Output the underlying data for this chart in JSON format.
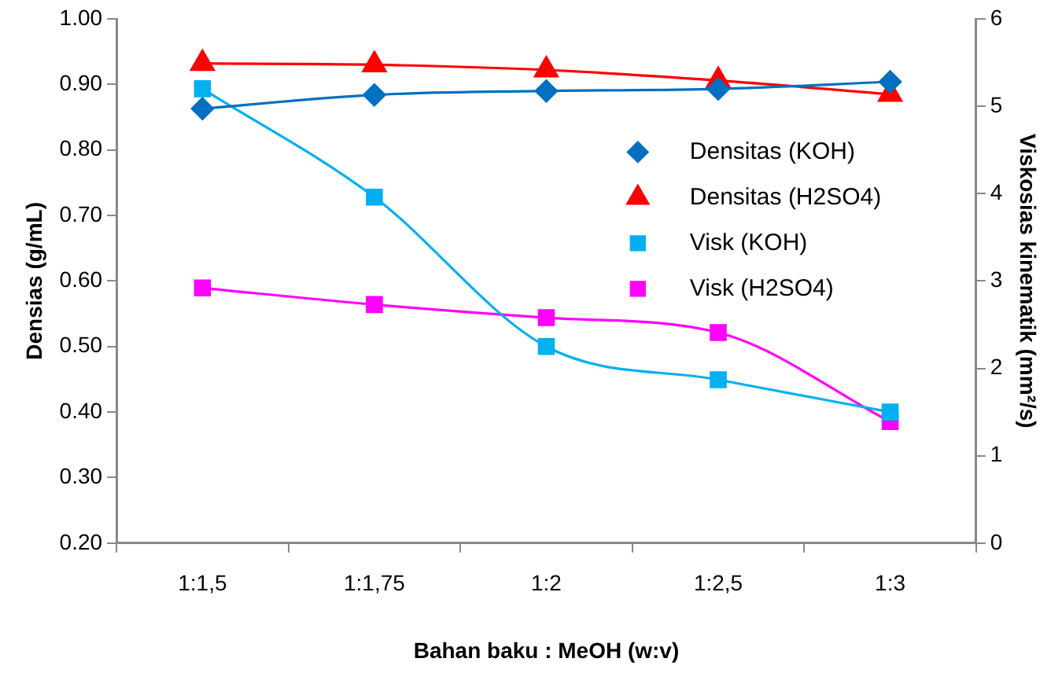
{
  "chart_data": {
    "type": "line",
    "xlabel": "Bahan baku : MeOH (w:v)",
    "ylabel": "Densias (g/mL)",
    "y2label": "Viskosias kinematik (mm²/s)",
    "categories": [
      "1:1,5",
      "1:1,75",
      "1:2",
      "1:2,5",
      "1:3"
    ],
    "ylim": [
      0.2,
      1.0
    ],
    "yticks": [
      {
        "value": 0.2,
        "label": "0.20"
      },
      {
        "value": 0.3,
        "label": "0.30"
      },
      {
        "value": 0.4,
        "label": "0.40"
      },
      {
        "value": 0.5,
        "label": "0.50"
      },
      {
        "value": 0.6,
        "label": "0.60"
      },
      {
        "value": 0.7,
        "label": "0.70"
      },
      {
        "value": 0.8,
        "label": "0.80"
      },
      {
        "value": 0.9,
        "label": "0.90"
      },
      {
        "value": 1.0,
        "label": "1.00"
      }
    ],
    "y2lim": [
      0,
      6
    ],
    "y2ticks": [
      0,
      1,
      2,
      3,
      4,
      5,
      6
    ],
    "grid": false,
    "legend": "right",
    "line_style": "solid",
    "series": [
      {
        "name": "Densitas (KOH)",
        "color": "#0070c0",
        "marker": "diamond",
        "values": [
          0.863,
          0.884,
          0.89,
          0.893,
          0.904
        ]
      },
      {
        "name": "Densitas (H2SO4)",
        "color": "#ff0000",
        "marker": "triangle",
        "values": [
          0.932,
          0.93,
          0.922,
          0.906,
          0.885
        ]
      },
      {
        "name": "Visk (KOH)",
        "color": "#00b0f0",
        "marker": "square",
        "axis": "y2",
        "values": [
          5.2,
          3.96,
          2.25,
          1.87,
          1.5
        ]
      },
      {
        "name": "Visk (H2SO4)",
        "color": "#ff00ff",
        "marker": "square",
        "axis": "y2",
        "values": [
          2.92,
          2.73,
          2.58,
          2.41,
          1.39
        ]
      }
    ]
  }
}
